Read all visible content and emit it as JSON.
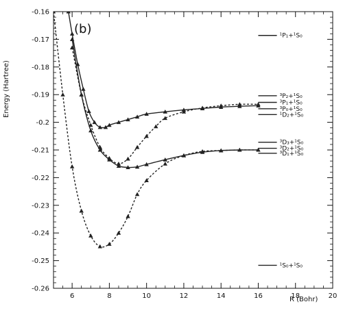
{
  "chart_data": {
    "type": "line",
    "panel_label": "(b)",
    "xlabel": "R (Bohr)",
    "ylabel": "Energy (Hartree)",
    "xlim": [
      5,
      20
    ],
    "ylim": [
      -0.26,
      -0.16
    ],
    "x_ticks": [
      6,
      8,
      10,
      12,
      14,
      16,
      18,
      20
    ],
    "x_tick_labels": [
      "6",
      "8",
      "10",
      "12",
      "14",
      "16",
      "18",
      "20"
    ],
    "y_ticks": [
      -0.16,
      -0.17,
      -0.18,
      -0.19,
      -0.2,
      -0.21,
      -0.22,
      -0.23,
      -0.24,
      -0.25,
      -0.26
    ],
    "y_tick_labels": [
      "-0.16",
      "-0.17",
      "-0.18",
      "-0.19",
      "-0.2",
      "-0.21",
      "-0.22",
      "-0.23",
      "-0.24",
      "-0.25",
      "-0.26"
    ],
    "series": [
      {
        "style": "solid",
        "x": [
          5.8,
          6.0,
          6.3,
          6.6,
          6.9,
          7.2,
          7.5,
          7.8,
          8.0,
          8.5,
          9.0,
          9.5,
          10.0,
          11.0,
          12.0,
          13.0,
          14.0,
          15.0,
          16.0
        ],
        "y": [
          -0.16,
          -0.168,
          -0.179,
          -0.188,
          -0.196,
          -0.2,
          -0.2018,
          -0.2018,
          -0.201,
          -0.2,
          -0.199,
          -0.198,
          -0.197,
          -0.1962,
          -0.1955,
          -0.195,
          -0.1945,
          -0.1942,
          -0.194
        ],
        "markers": true
      },
      {
        "style": "solid",
        "x": [
          6.0,
          6.5,
          7.0,
          7.5,
          8.0,
          8.5,
          9.0,
          9.5,
          10.0,
          11.0,
          12.0,
          13.0,
          14.0,
          15.0,
          16.0
        ],
        "y": [
          -0.17,
          -0.19,
          -0.203,
          -0.21,
          -0.2135,
          -0.2158,
          -0.2163,
          -0.2161,
          -0.2152,
          -0.2135,
          -0.212,
          -0.2108,
          -0.2102,
          -0.21,
          -0.21
        ],
        "markers": true
      },
      {
        "style": "dashed",
        "x": [
          6.0,
          6.5,
          7.0,
          7.5,
          8.0,
          8.5,
          9.0,
          9.5,
          10.0,
          10.5,
          11.0,
          12.0,
          13.0,
          14.0,
          15.0,
          16.0
        ],
        "y": [
          -0.173,
          -0.19,
          -0.201,
          -0.209,
          -0.213,
          -0.215,
          -0.2132,
          -0.209,
          -0.205,
          -0.2015,
          -0.1985,
          -0.1962,
          -0.1948,
          -0.194,
          -0.1935,
          -0.1935
        ],
        "markers": true
      },
      {
        "style": "dashed",
        "x": [
          5.0,
          5.5,
          6.0,
          6.5,
          7.0,
          7.5,
          8.0,
          8.5,
          9.0,
          9.5,
          10.0,
          11.0,
          12.0,
          13.0,
          14.0,
          15.0,
          16.0
        ],
        "y": [
          -0.16,
          -0.19,
          -0.216,
          -0.232,
          -0.241,
          -0.2449,
          -0.244,
          -0.24,
          -0.234,
          -0.226,
          -0.221,
          -0.215,
          -0.212,
          -0.2105,
          -0.2102,
          -0.21,
          -0.21
        ],
        "markers": true
      }
    ],
    "asymptotes": [
      {
        "label": "¹P₁+¹S₀",
        "y": -0.1686
      },
      {
        "label": "³P₂+¹S₀",
        "y": -0.1904
      },
      {
        "label": "³P₁+¹S₀",
        "y": -0.1928
      },
      {
        "label": "³P₀+¹S₀",
        "y": -0.1951
      },
      {
        "label": "¹D₂+¹S₀",
        "y": -0.1972
      },
      {
        "label": "³D₃+¹S₀",
        "y": -0.2072
      },
      {
        "label": "³D₂+¹S₀",
        "y": -0.2094
      },
      {
        "label": "³D₁+¹S₀",
        "y": -0.2112
      },
      {
        "label": "¹S₀+¹S₀",
        "y": -0.2517
      }
    ],
    "asymptote_x_range": [
      16.0,
      17.0
    ],
    "grid": false,
    "colors": {
      "line": "#222222",
      "axis": "#111111"
    }
  }
}
